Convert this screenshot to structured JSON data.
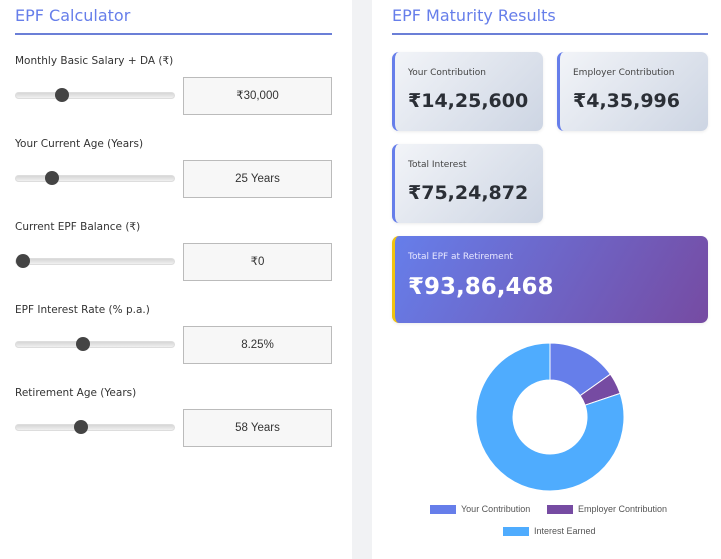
{
  "calculator": {
    "title": "EPF Calculator",
    "fields": [
      {
        "label": "Monthly Basic Salary + DA (₹)",
        "value": "₹30,000",
        "slider_percent": 27
      },
      {
        "label": "Your Current Age (Years)",
        "value": "25 Years",
        "slider_percent": 20
      },
      {
        "label": "Current EPF Balance (₹)",
        "value": "₹0",
        "slider_percent": 0
      },
      {
        "label": "EPF Interest Rate (% p.a.)",
        "value": "8.25%",
        "slider_percent": 41
      },
      {
        "label": "Retirement Age (Years)",
        "value": "58 Years",
        "slider_percent": 40
      }
    ]
  },
  "results": {
    "title": "EPF Maturity Results",
    "cards": [
      {
        "label": "Your Contribution",
        "value": "₹14,25,600"
      },
      {
        "label": "Employer Contribution",
        "value": "₹4,35,996"
      },
      {
        "label": "Total Interest",
        "value": "₹75,24,872"
      },
      {
        "label": "Total EPF at Retirement",
        "value": "₹93,86,468"
      }
    ]
  },
  "chart_data": {
    "type": "doughnut",
    "categories": [
      "Your Contribution",
      "Employer Contribution",
      "Interest Earned"
    ],
    "values": [
      1425600,
      435996,
      7524872
    ],
    "colors": [
      "#667eea",
      "#764ba2",
      "#4facfe"
    ],
    "legend": "bottom"
  }
}
